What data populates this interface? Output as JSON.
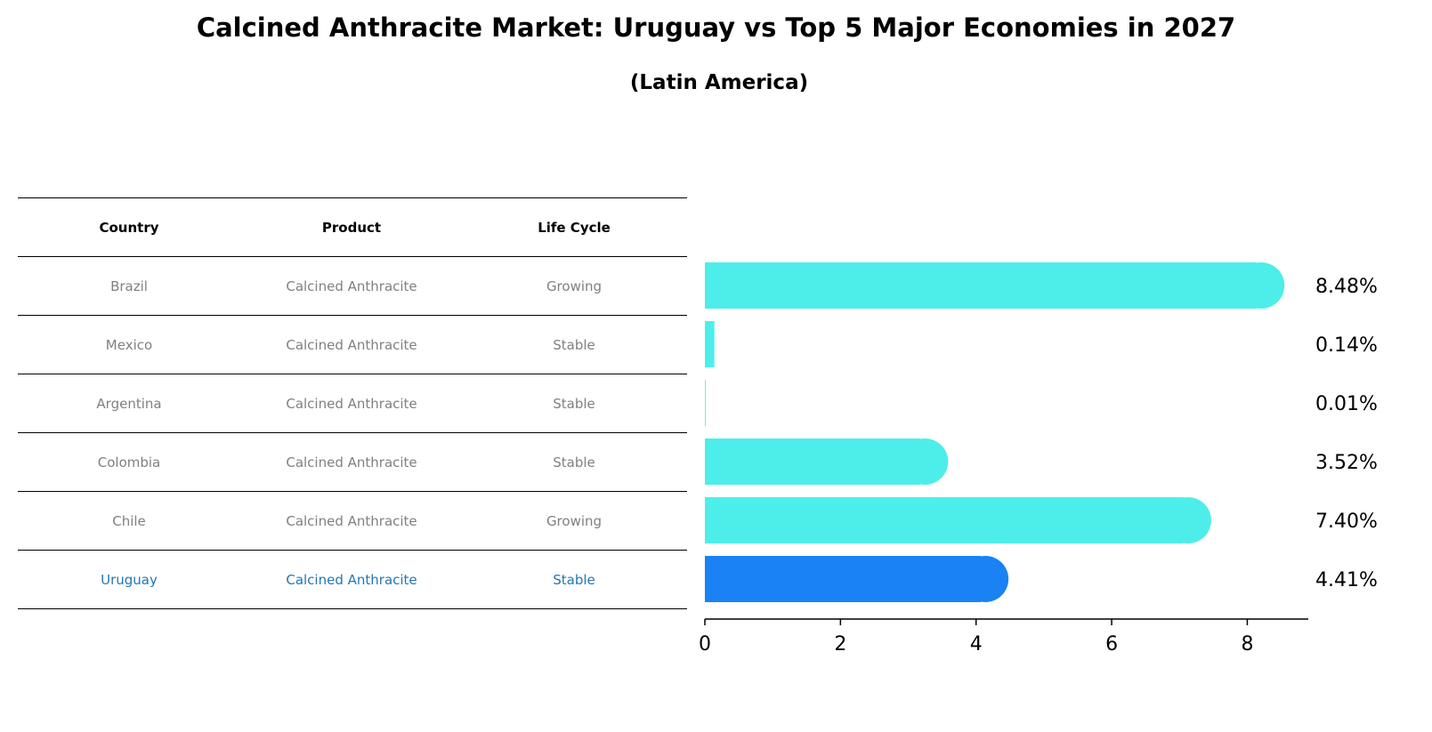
{
  "title": "Calcined Anthracite Market: Uruguay vs Top 5 Major Economies in 2027",
  "subtitle": "(Latin America)",
  "table": {
    "headers": [
      "Country",
      "Product",
      "Life Cycle"
    ],
    "rows": [
      {
        "country": "Brazil",
        "product": "Calcined Anthracite",
        "life_cycle": "Growing"
      },
      {
        "country": "Mexico",
        "product": "Calcined Anthracite",
        "life_cycle": "Stable"
      },
      {
        "country": "Argentina",
        "product": "Calcined Anthracite",
        "life_cycle": "Stable"
      },
      {
        "country": "Colombia",
        "product": "Calcined Anthracite",
        "life_cycle": "Stable"
      },
      {
        "country": "Chile",
        "product": "Calcined Anthracite",
        "life_cycle": "Growing"
      },
      {
        "country": "Uruguay",
        "product": "Calcined Anthracite",
        "life_cycle": "Stable"
      }
    ],
    "text_color": "#808080",
    "highlight_color": "#1f77b4"
  },
  "chart_data": {
    "type": "bar",
    "orientation": "horizontal",
    "categories": [
      "Brazil",
      "Mexico",
      "Argentina",
      "Colombia",
      "Chile",
      "Uruguay"
    ],
    "values": [
      8.48,
      0.14,
      0.01,
      3.52,
      7.4,
      4.41
    ],
    "value_labels": [
      "8.48%",
      "0.14%",
      "0.01%",
      "3.52%",
      "7.40%",
      "4.41%"
    ],
    "highlight": "Uruguay",
    "xlim": [
      0,
      8.9
    ],
    "xticks": [
      0,
      2,
      4,
      6,
      8
    ],
    "xtick_labels": [
      "0",
      "2",
      "4",
      "6",
      "8"
    ],
    "bar_color": "#4deeea",
    "highlight_color": "#1a82f5",
    "grid": false,
    "legend": false
  }
}
